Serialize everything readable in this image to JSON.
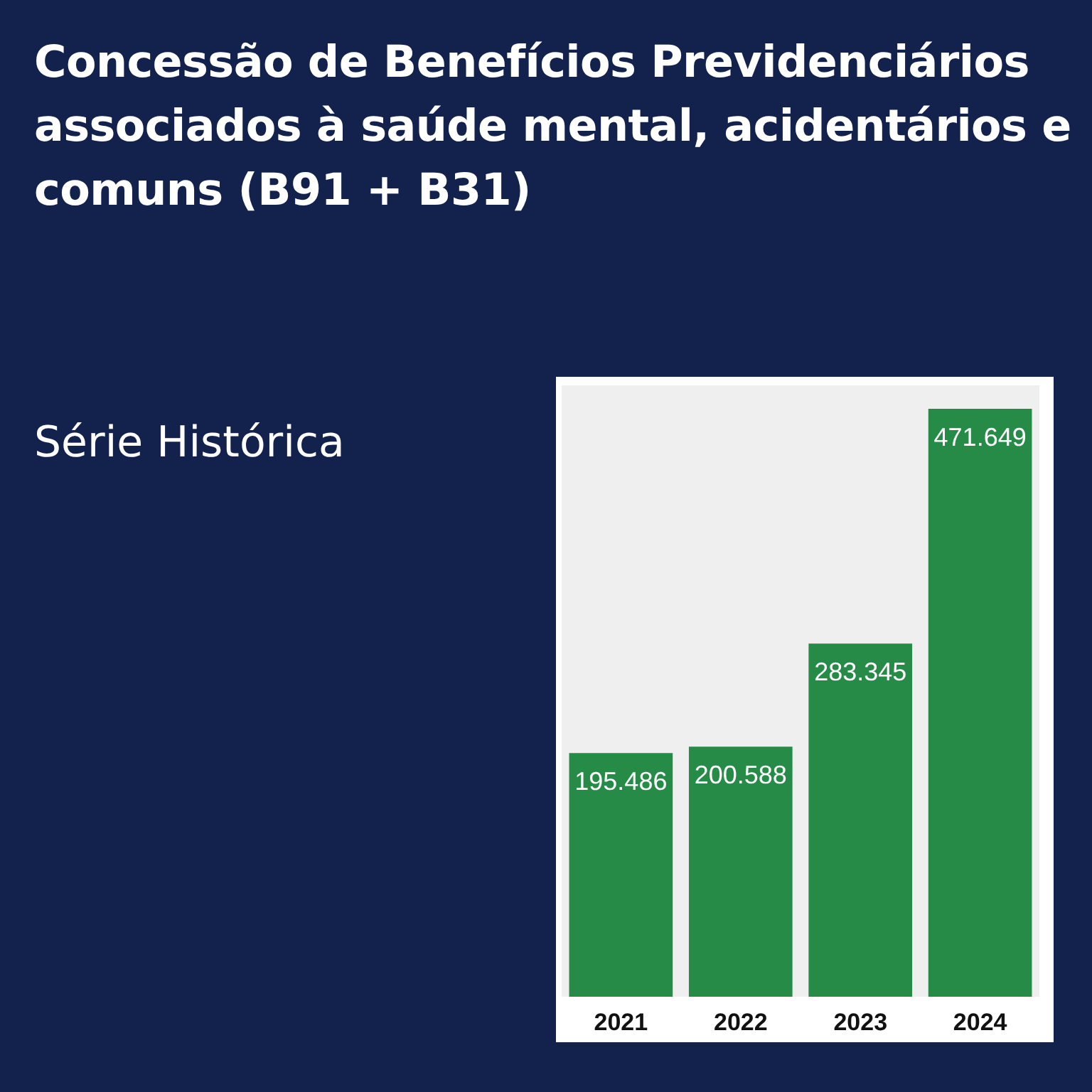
{
  "chart_data": {
    "type": "bar",
    "title": "Concessão de Benefícios Previdenciários associados à saúde mental, acidentários e comuns (B91 + B31)",
    "subtitle": "Série Histórica",
    "categories": [
      "2021",
      "2022",
      "2023",
      "2024"
    ],
    "values": [
      195486,
      200588,
      283345,
      471649
    ],
    "value_labels": [
      "195.486",
      "200.588",
      "283.345",
      "471.649"
    ],
    "color": "#268b47",
    "grid": false
  }
}
